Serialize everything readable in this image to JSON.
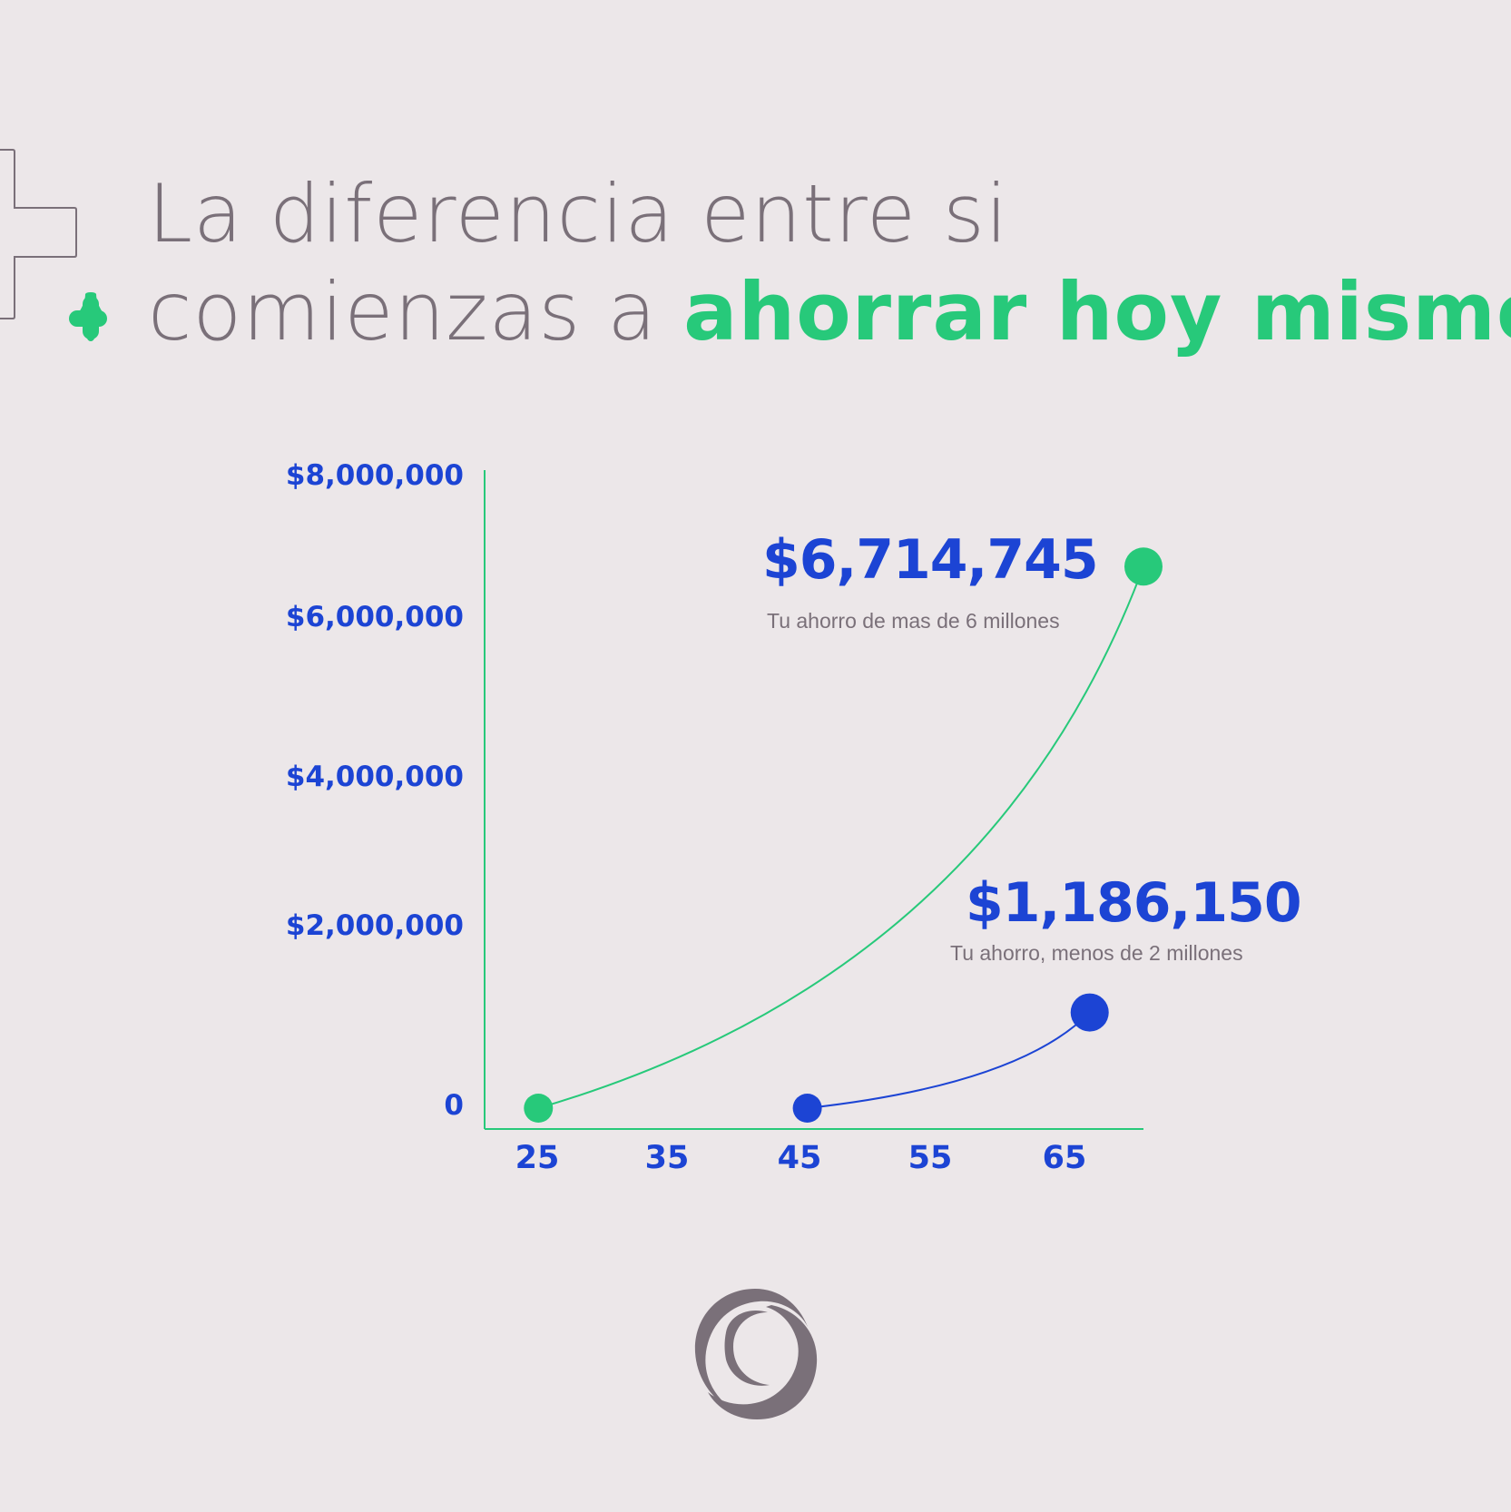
{
  "title": {
    "line1": "La diferencia entre si",
    "line2_prefix": "comienzas a ",
    "line2_highlight": "ahorrar hoy mismo"
  },
  "colors": {
    "background": "#ece7e9",
    "text_gray": "#7a7079",
    "accent_green": "#27c97a",
    "accent_blue": "#1c44d4"
  },
  "chart_data": {
    "type": "line",
    "x_ticks": [
      "25",
      "35",
      "45",
      "55",
      "65"
    ],
    "y_ticks": [
      "0",
      "$2,000,000",
      "$4,000,000",
      "$6,000,000",
      "$8,000,000"
    ],
    "xlim": [
      21,
      70
    ],
    "ylim": [
      0,
      8000000
    ],
    "series": [
      {
        "color": "#27c97a",
        "start": {
          "x": 25,
          "y": 0
        },
        "end": {
          "x": 70,
          "y": 6714745
        },
        "label": "$6,714,745",
        "caption": "Tu ahorro de mas de 6 millones"
      },
      {
        "color": "#1c44d4",
        "start": {
          "x": 45,
          "y": 0
        },
        "end": {
          "x": 66,
          "y": 1186150
        },
        "label": "$1,186,150",
        "caption": "Tu ahorro, menos de 2 millones"
      }
    ],
    "legend": "none",
    "grid": false
  },
  "icons": {
    "decoration": "plus-outline-icon",
    "sparkle": "sparkle-plus-icon",
    "logo": "circle-swirl-logo-icon"
  }
}
